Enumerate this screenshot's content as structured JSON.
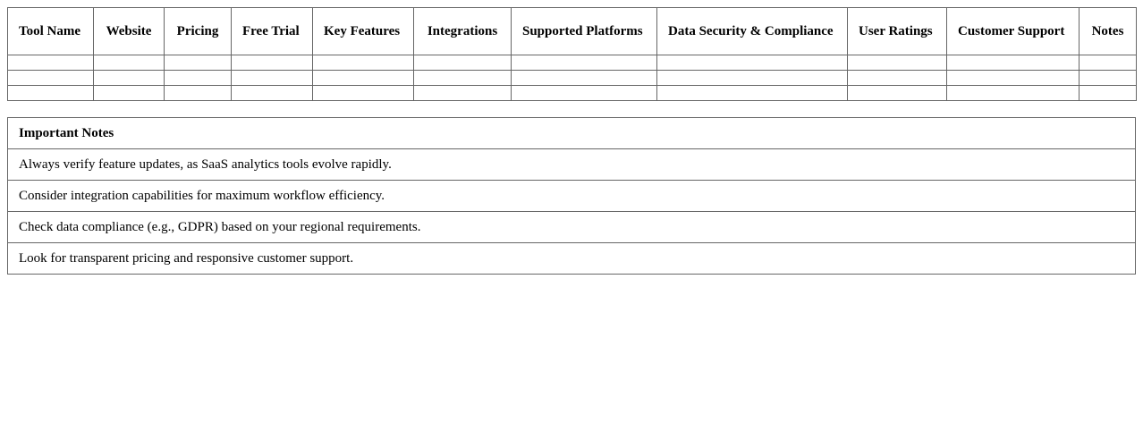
{
  "comparison_table": {
    "headers": [
      "Tool Name",
      "Website",
      "Pricing",
      "Free Trial",
      "Key Features",
      "Integrations",
      "Supported Platforms",
      "Data Security & Compliance",
      "User Ratings",
      "Customer Support",
      "Notes"
    ],
    "rows": [
      [
        "",
        "",
        "",
        "",
        "",
        "",
        "",
        "",
        "",
        "",
        ""
      ],
      [
        "",
        "",
        "",
        "",
        "",
        "",
        "",
        "",
        "",
        "",
        ""
      ],
      [
        "",
        "",
        "",
        "",
        "",
        "",
        "",
        "",
        "",
        "",
        ""
      ]
    ]
  },
  "notes": {
    "title": "Important Notes",
    "items": [
      "Always verify feature updates, as SaaS analytics tools evolve rapidly.",
      "Consider integration capabilities for maximum workflow efficiency.",
      "Check data compliance (e.g., GDPR) based on your regional requirements.",
      "Look for transparent pricing and responsive customer support."
    ]
  }
}
